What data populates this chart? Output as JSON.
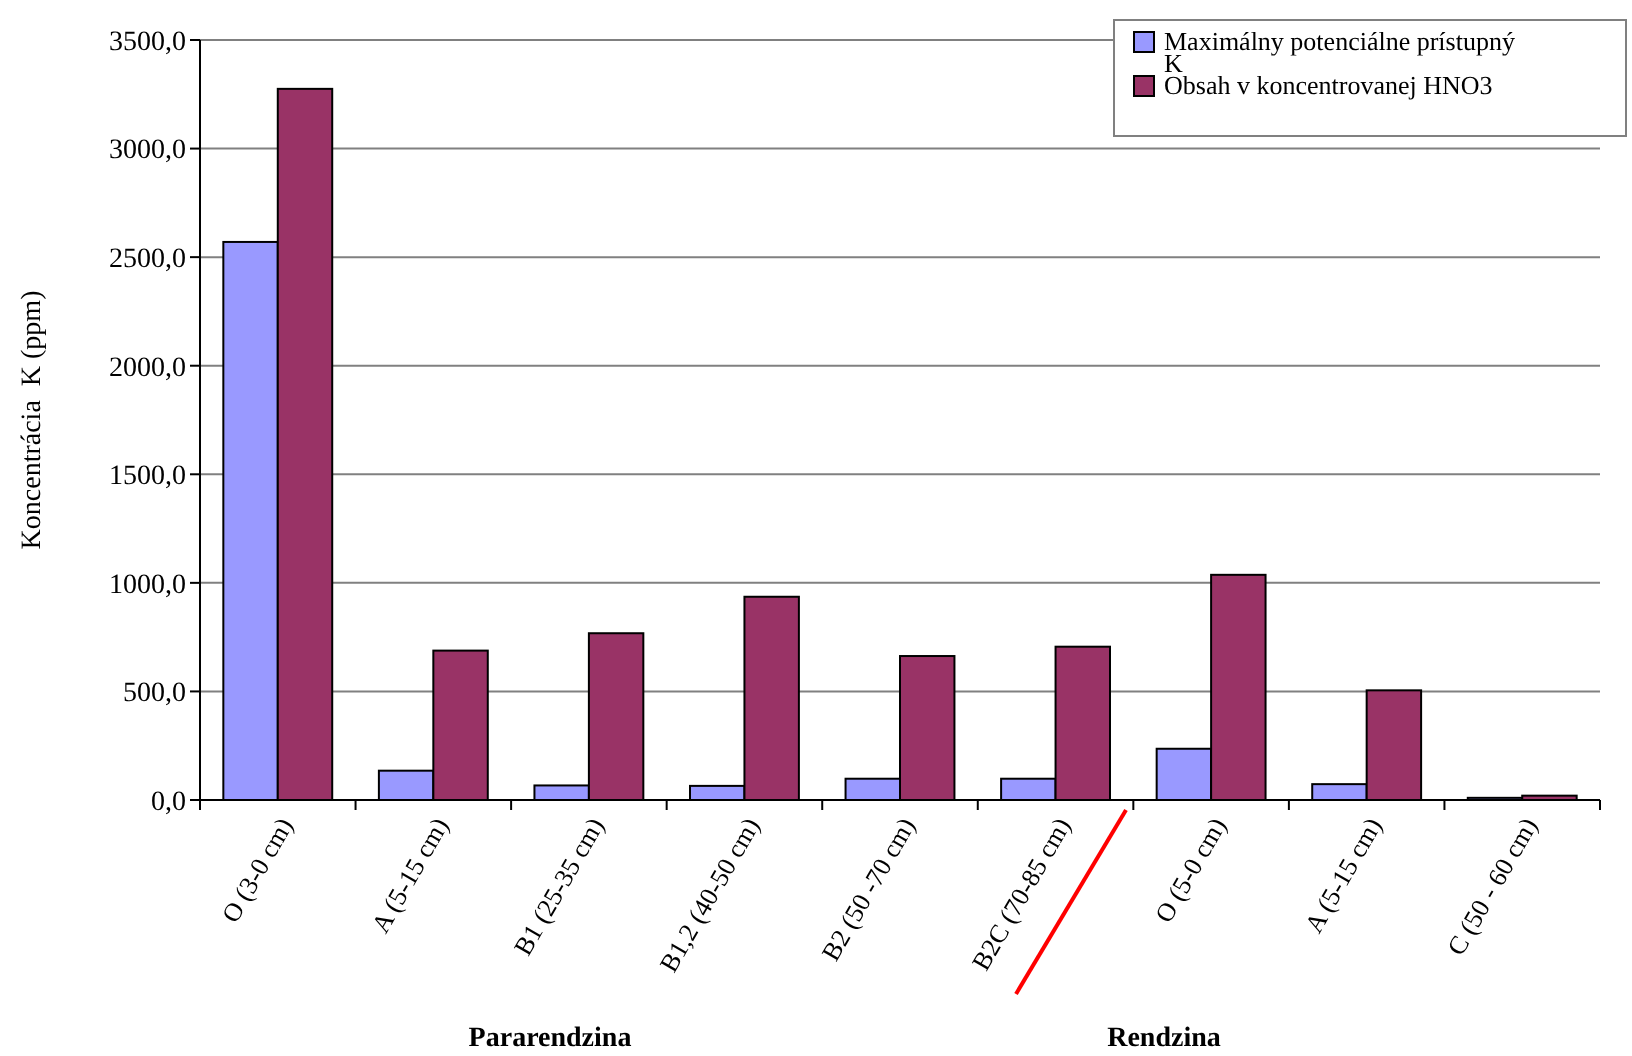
{
  "chart_data": {
    "type": "bar",
    "ylabel": "Koncentrácia  K (ppm)",
    "categories": [
      "O (3-0 cm)",
      "A (5-15 cm)",
      "B1 (25-35 cm)",
      "B1,2 (40-50 cm)",
      "B2 (50 -70 cm)",
      "B2C (70-85 cm)",
      "O (5-0 cm)",
      "A (5-15 cm)",
      "C (50 - 60 cm)"
    ],
    "series": [
      {
        "name": "Maximálny potenciálne prístupný K",
        "color": "#9999ff",
        "values": [
          2570,
          135,
          67,
          65,
          98,
          98,
          236,
          73,
          10
        ]
      },
      {
        "name": "Obsah v koncentrovanej HNO3",
        "color": "#993366",
        "values": [
          3275,
          688,
          768,
          936,
          663,
          706,
          1037,
          505,
          20
        ]
      }
    ],
    "ylim": [
      0,
      3500
    ],
    "yticks": [
      {
        "value": 0,
        "label": "0,0"
      },
      {
        "value": 500,
        "label": "500,0"
      },
      {
        "value": 1000,
        "label": "1000,0"
      },
      {
        "value": 1500,
        "label": "1500,0"
      },
      {
        "value": 2000,
        "label": "2000,0"
      },
      {
        "value": 2500,
        "label": "2500,0"
      },
      {
        "value": 3000,
        "label": "3000,0"
      },
      {
        "value": 3500,
        "label": "3500,0"
      }
    ],
    "grid": "y",
    "legend": "top right",
    "annotations": [
      "Pararendzina",
      "Rendzina"
    ]
  }
}
